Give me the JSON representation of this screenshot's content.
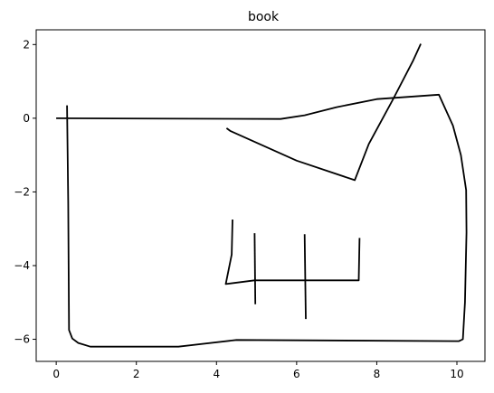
{
  "chart_data": {
    "type": "line",
    "title": "book",
    "xlabel": "",
    "ylabel": "",
    "xlim": [
      -0.5,
      10.7
    ],
    "ylim": [
      -6.6,
      2.4
    ],
    "xticks": [
      0,
      2,
      4,
      6,
      8,
      10
    ],
    "yticks": [
      2,
      0,
      -2,
      -4,
      -6
    ],
    "xtick_labels": [
      "0",
      "2",
      "4",
      "6",
      "8",
      "10"
    ],
    "ytick_labels": [
      "2",
      "0",
      "−2",
      "−4",
      "−6"
    ],
    "grid": false,
    "legend": "none",
    "line_color": "#000000",
    "series": [
      {
        "points": [
          [
            0.0,
            0.0
          ],
          [
            5.6,
            -0.02
          ],
          [
            6.2,
            0.08
          ],
          [
            7.0,
            0.3
          ],
          [
            8.0,
            0.52
          ],
          [
            9.55,
            0.64
          ],
          [
            9.9,
            -0.2
          ],
          [
            10.1,
            -1.0
          ],
          [
            10.23,
            -1.95
          ],
          [
            10.24,
            -3.1
          ],
          [
            10.2,
            -5.0
          ],
          [
            10.15,
            -6.0
          ],
          [
            10.05,
            -6.05
          ],
          [
            4.5,
            -6.02
          ],
          [
            3.05,
            -6.2
          ],
          [
            0.85,
            -6.2
          ],
          [
            0.55,
            -6.1
          ],
          [
            0.4,
            -5.98
          ],
          [
            0.32,
            -5.75
          ],
          [
            0.3,
            -2.3
          ],
          [
            0.27,
            0.35
          ]
        ]
      },
      {
        "points": [
          [
            9.1,
            2.02
          ],
          [
            8.9,
            1.55
          ],
          [
            8.4,
            0.5
          ],
          [
            7.8,
            -0.7
          ],
          [
            7.45,
            -1.68
          ],
          [
            6.0,
            -1.15
          ],
          [
            4.35,
            -0.35
          ],
          [
            4.25,
            -0.27
          ]
        ]
      },
      {
        "points": [
          [
            4.4,
            -2.75
          ],
          [
            4.38,
            -3.7
          ],
          [
            4.23,
            -4.5
          ],
          [
            4.95,
            -4.4
          ],
          [
            7.55,
            -4.4
          ],
          [
            7.57,
            -3.25
          ]
        ]
      },
      {
        "points": [
          [
            4.95,
            -3.12
          ],
          [
            4.97,
            -5.05
          ]
        ]
      },
      {
        "points": [
          [
            6.2,
            -3.15
          ],
          [
            6.23,
            -5.45
          ]
        ]
      }
    ]
  }
}
